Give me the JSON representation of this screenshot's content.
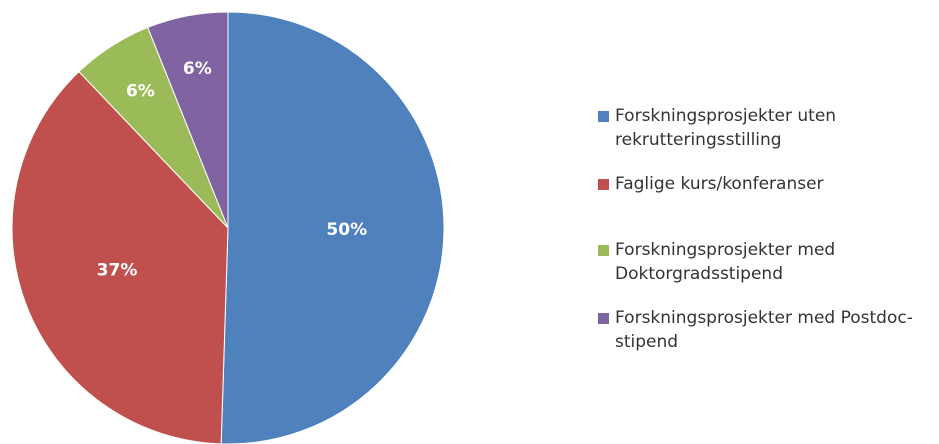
{
  "chart_data": {
    "type": "pie",
    "categories": [
      "Forskningsprosjekter uten rekrutteringsstilling",
      "Faglige kurs/konferanser",
      "Forskningsprosjekter med Doktorgradsstipend",
      "Forskningsprosjekter med Postdoc-stipend"
    ],
    "values": [
      50,
      37,
      6,
      6
    ],
    "value_labels": [
      "50%",
      "37%",
      "6%",
      "6%"
    ],
    "colors": [
      "#4f81bd",
      "#c0504d",
      "#9bbb59",
      "#8064a2"
    ],
    "legend": "right"
  }
}
